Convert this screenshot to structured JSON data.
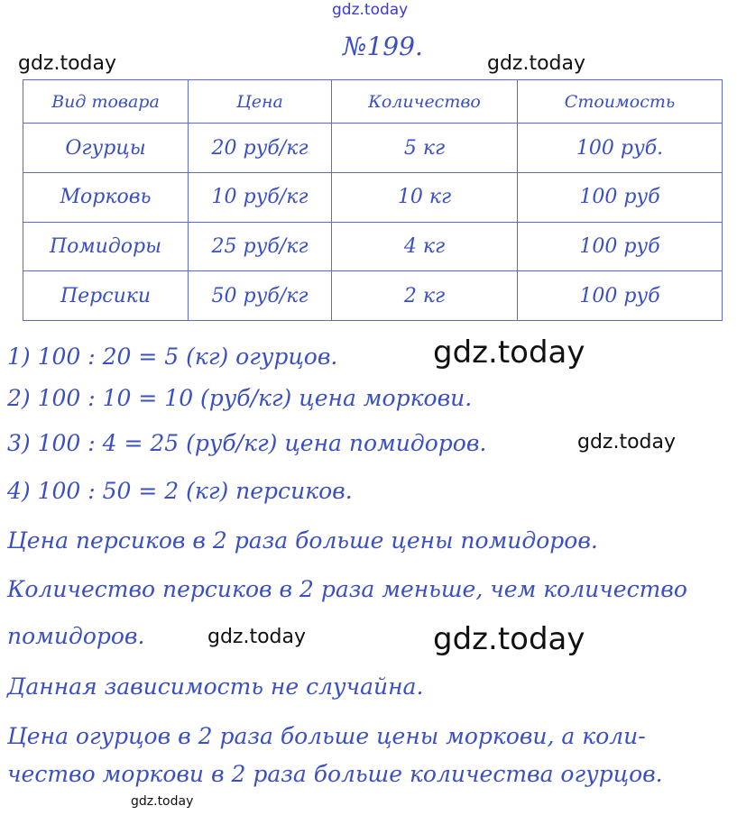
{
  "title": "№199.",
  "table": {
    "headers": [
      "Вид товара",
      "Цена",
      "Количество",
      "Стоимость"
    ],
    "rows": [
      [
        "Огурцы",
        "20 руб/кг",
        "5 кг",
        "100 руб."
      ],
      [
        "Морковь",
        "10 руб/кг",
        "10 кг",
        "100 руб"
      ],
      [
        "Помидоры",
        "25 руб/кг",
        "4 кг",
        "100 руб"
      ],
      [
        "Персики",
        "50 руб/кг",
        "2 кг",
        "100 руб"
      ]
    ]
  },
  "lines": [
    "1) 100 : 20 = 5 (кг) огурцов.",
    "2) 100 : 10 = 10 (руб/кг) цена моркови.",
    "3) 100 : 4 = 25 (руб/кг) цена помидоров.",
    "4) 100 : 50 = 2 (кг) персиков.",
    "Цена персиков в 2 раза больше цены помидоров.",
    "Количество персиков в 2 раза меньше, чем количество",
    "помидоров.",
    "Данная зависимость не случайна.",
    "Цена огурцов в 2 раза больше цены моркови, а коли-",
    "чество моркови в 2 раза больше количества огурцов."
  ],
  "watermark": "gdz.today",
  "colors": {
    "ink": "#3b4fc4",
    "watermark_top": "#3a3ad8"
  }
}
